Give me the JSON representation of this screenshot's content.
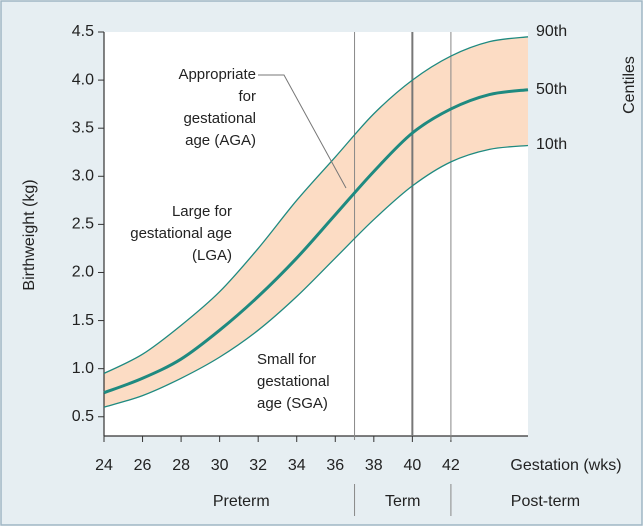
{
  "chart_data": {
    "type": "line",
    "xlabel": "Gestation (wks)",
    "ylabel": "Birthweight (kg)",
    "legend_title": "Centiles",
    "x": [
      24,
      26,
      28,
      30,
      32,
      34,
      36,
      38,
      40,
      42,
      44,
      46
    ],
    "series": [
      {
        "name": "90th",
        "color": "#1f8a80",
        "values": [
          0.95,
          1.15,
          1.45,
          1.8,
          2.25,
          2.75,
          3.2,
          3.65,
          4.0,
          4.25,
          4.4,
          4.45
        ]
      },
      {
        "name": "50th",
        "color": "#1f8a80",
        "values": [
          0.75,
          0.9,
          1.1,
          1.4,
          1.75,
          2.15,
          2.6,
          3.05,
          3.45,
          3.7,
          3.85,
          3.9
        ]
      },
      {
        "name": "10th",
        "color": "#1f8a80",
        "values": [
          0.6,
          0.72,
          0.9,
          1.12,
          1.4,
          1.75,
          2.15,
          2.55,
          2.9,
          3.15,
          3.28,
          3.32
        ]
      }
    ],
    "band_color": "#fcdcc4",
    "xlim": [
      24,
      46
    ],
    "xticks": [
      24,
      26,
      28,
      30,
      32,
      34,
      36,
      38,
      40,
      42
    ],
    "ylim": [
      0.3,
      4.5
    ],
    "yticks": [
      0.5,
      {
        "value": 1,
        "label": "1.0"
      },
      1.5,
      {
        "value": 2,
        "label": "2.0"
      },
      2.5,
      {
        "value": 3,
        "label": "3.0"
      },
      3.5,
      {
        "value": 4,
        "label": "4.0"
      },
      4.5
    ],
    "vlines": [
      37,
      40,
      42
    ],
    "periods": [
      "Preterm",
      "Term",
      "Post-term"
    ],
    "annotations": [
      [
        "Appropriate",
        "for",
        "gestational",
        "age (AGA)"
      ],
      [
        "Large for",
        "gestational age",
        "(LGA)"
      ],
      [
        "Small for",
        "gestational",
        "age (SGA)"
      ]
    ]
  }
}
